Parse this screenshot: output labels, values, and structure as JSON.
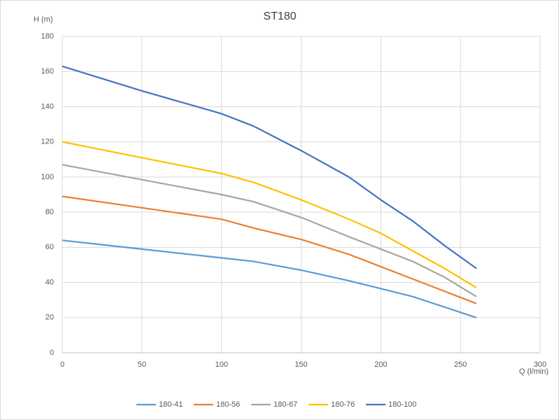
{
  "chart_data": {
    "type": "line",
    "title": "ST180",
    "x_label": "Q (l/min)",
    "y_label": "H (m)",
    "x": [
      0,
      50,
      100,
      120,
      150,
      180,
      200,
      220,
      240,
      260
    ],
    "series": [
      {
        "name": "180-41",
        "color": "#5b9bd5",
        "values": [
          64,
          59,
          54,
          52,
          47,
          41,
          36.5,
          32,
          26,
          20
        ]
      },
      {
        "name": "180-56",
        "color": "#ed7d31",
        "values": [
          89,
          82.5,
          76,
          71,
          64.5,
          56,
          49,
          42,
          35,
          28
        ]
      },
      {
        "name": "180-67",
        "color": "#a5a5a5",
        "values": [
          107,
          98.5,
          90,
          86,
          77,
          66,
          59,
          52,
          43,
          32
        ]
      },
      {
        "name": "180-76",
        "color": "#ffc000",
        "values": [
          120,
          111,
          102,
          97,
          87,
          76,
          68,
          58,
          48,
          37
        ]
      },
      {
        "name": "180-100",
        "color": "#4472c4",
        "values": [
          163,
          149,
          136,
          129,
          115,
          100,
          87,
          75,
          61,
          48
        ]
      }
    ],
    "xlim": [
      0,
      300
    ],
    "xticks": [
      0,
      50,
      100,
      150,
      200,
      250,
      300
    ],
    "ylim": [
      0,
      180
    ],
    "yticks": [
      0,
      20,
      40,
      60,
      80,
      100,
      120,
      140,
      160,
      180
    ],
    "grid": true,
    "legend": "bottom"
  }
}
